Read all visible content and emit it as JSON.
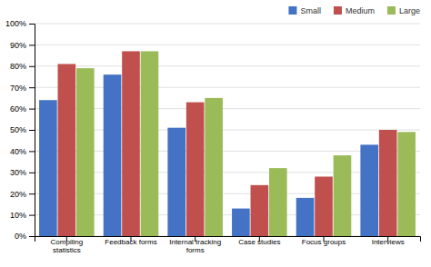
{
  "chart_data": {
    "type": "bar",
    "categories": [
      "Compiling\nstatistics",
      "Feedback forms",
      "Internal tracking\nforms",
      "Case studies",
      "Focus groups",
      "Interviews"
    ],
    "series": [
      {
        "name": "Small",
        "color": "#4472C4",
        "values": [
          64,
          76,
          51,
          13,
          18,
          43
        ]
      },
      {
        "name": "Medium",
        "color": "#C0504D",
        "values": [
          81,
          87,
          63,
          24,
          28,
          50
        ]
      },
      {
        "name": "Large",
        "color": "#9BBB59",
        "values": [
          79,
          87,
          65,
          32,
          38,
          49
        ]
      }
    ],
    "ylim": [
      0,
      100
    ],
    "yticks": [
      {
        "value": 0,
        "label": "0%"
      },
      {
        "value": 10,
        "label": "10%"
      },
      {
        "value": 20,
        "label": "20%"
      },
      {
        "value": 30,
        "label": "30%"
      },
      {
        "value": 40,
        "label": "40%"
      },
      {
        "value": 50,
        "label": "50%"
      },
      {
        "value": 60,
        "label": "60%"
      },
      {
        "value": 70,
        "label": "70%"
      },
      {
        "value": 80,
        "label": "80%"
      },
      {
        "value": 90,
        "label": "90%"
      },
      {
        "value": 100,
        "label": "100%"
      }
    ],
    "grid": true,
    "legend": "upper right"
  }
}
